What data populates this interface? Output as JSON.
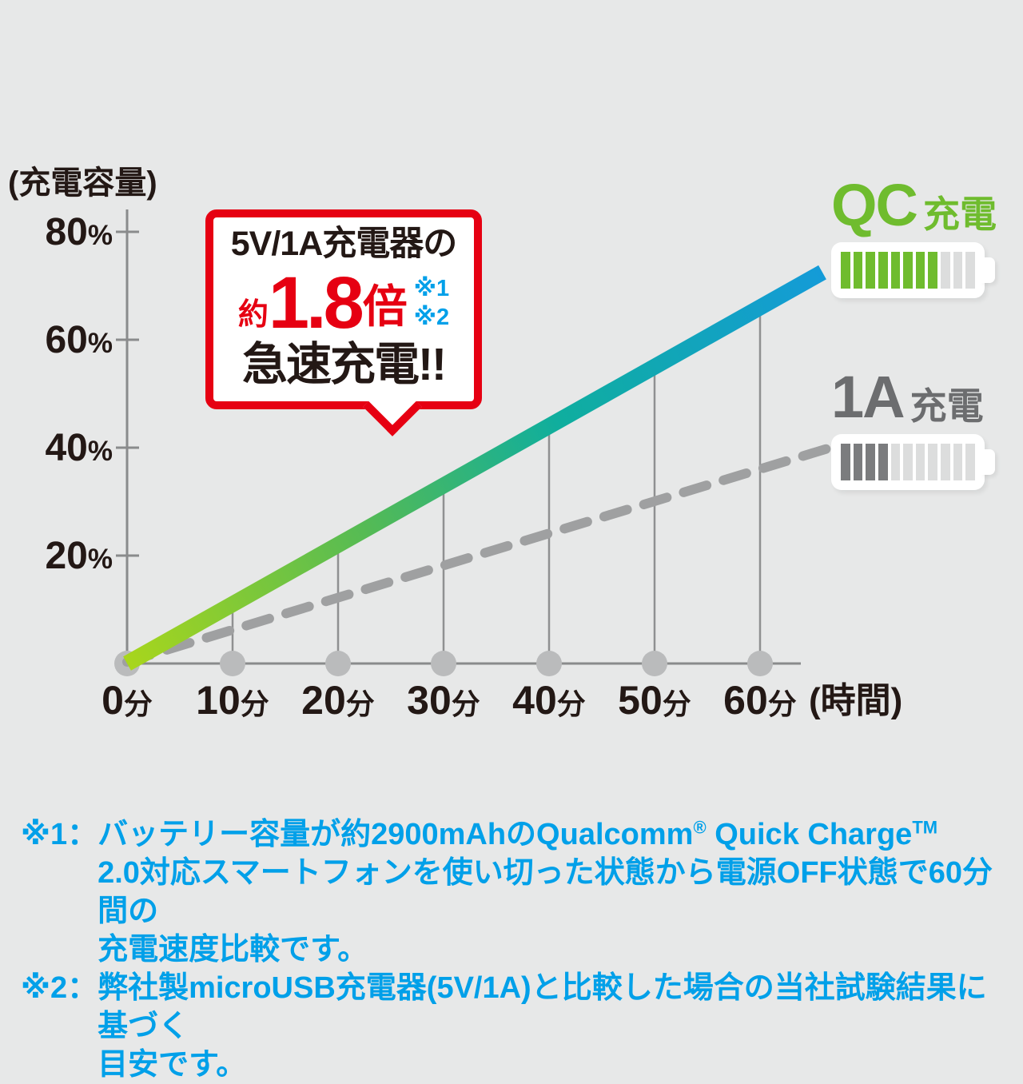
{
  "colors": {
    "background": "#e7e8e8",
    "text_black": "#231815",
    "accent_red": "#e60012",
    "accent_cyan": "#00a0e9",
    "qc_green": "#6fbc2e",
    "gray_dark": "#6c6d6f",
    "axis_gray": "#8a8b8c",
    "grid_gray": "#8f9091",
    "dot_gray": "#babbbc",
    "dash_gray": "#9fa0a1",
    "battery_empty_bar": "#dcdddd",
    "battery_1a_bar": "#7b7c7e",
    "qc_gradient": [
      "#a8d61c",
      "#53ba56",
      "#0fae9e",
      "#149bd8"
    ],
    "qc_gradient_offsets": [
      "0%",
      "35%",
      "62%",
      "100%"
    ]
  },
  "chart_data": {
    "type": "line",
    "title": "",
    "y_axis_title": "(充電容量)",
    "x_axis_suffix": "(時間)",
    "x": [
      0,
      10,
      20,
      30,
      40,
      50,
      60
    ],
    "x_tick_labels": [
      "0分",
      "10分",
      "20分",
      "30分",
      "40分",
      "50分",
      "60分"
    ],
    "y_ticks": [
      20,
      40,
      60,
      80
    ],
    "y_tick_labels": [
      "20%",
      "40%",
      "60%",
      "80%"
    ],
    "ylim": [
      0,
      80
    ],
    "grid": "vertical-from-baseline-to-qc-line",
    "legend_position": "right",
    "series": [
      {
        "name": "QC充電",
        "style": "gradient-band",
        "values": [
          0,
          11,
          22,
          33,
          44,
          55,
          66
        ]
      },
      {
        "name": "1A充電",
        "style": "dashed",
        "values": [
          0,
          6,
          12,
          18,
          24,
          30,
          36
        ]
      }
    ]
  },
  "callout": {
    "line1": "5V/1A充電器の",
    "approx": "約",
    "multiplier": "1.8",
    "times_char": "倍",
    "refs": [
      "※1",
      "※2"
    ],
    "line3": "急速充電!!"
  },
  "legend": {
    "qc": {
      "label_main": "QC",
      "label_sub": "充電",
      "filled_bars": 8,
      "total_bars": 11
    },
    "a1": {
      "label_main": "1A",
      "label_sub": "充電",
      "filled_bars": 4,
      "total_bars": 11
    }
  },
  "footnotes": [
    {
      "label": "※1：",
      "lines": [
        [
          {
            "t": "バッテリー容量が約2900mAhのQualcomm"
          },
          {
            "t": "®",
            "sup": true
          },
          {
            "t": " Quick Charge"
          },
          {
            "t": "TM",
            "sup": true
          }
        ],
        [
          {
            "t": "2.0対応スマートフォンを使い切った状態から電源OFF状態で60分間の"
          }
        ],
        [
          {
            "t": "充電速度比較です。"
          }
        ]
      ]
    },
    {
      "label": "※2：",
      "lines": [
        [
          {
            "t": "弊社製microUSB充電器(5V/1A)と比較した場合の当社試験結果に基づく"
          }
        ],
        [
          {
            "t": "目安です。"
          }
        ]
      ]
    }
  ]
}
